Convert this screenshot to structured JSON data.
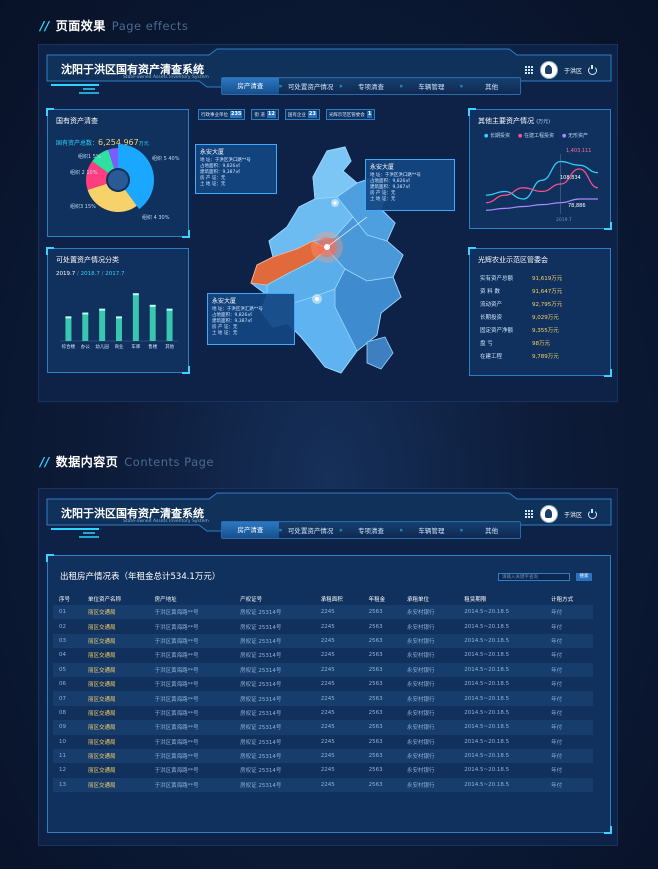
{
  "section1": {
    "slashes": "//",
    "title": "页面效果",
    "title_en": "Page effects"
  },
  "section2": {
    "slashes": "//",
    "title": "数据内容页",
    "title_en": "Contents Page"
  },
  "header": {
    "title": "沈阳于洪区国有资产清查系统",
    "subtitle": "State-owned Assets Inventory System",
    "user": "于洪区",
    "nav": [
      "房产清查",
      "可处置资产情况",
      "专项清查",
      "车辆管理",
      "其他"
    ],
    "active_index": 0
  },
  "assets_panel": {
    "title": "国有资产清查",
    "total_label": "国有资产总数：",
    "total_value": "6,254,967",
    "total_unit": "万元",
    "legend": [
      "组织1  5%",
      "组织 2  10%",
      "组织3  15%",
      "组织 4  30%",
      "组织 5  40%"
    ]
  },
  "disposable_panel": {
    "title": "可处置资产情况分类",
    "date1": "2019.7",
    "date2": "2018.7",
    "date3": "2017.7",
    "sep": "/"
  },
  "filters": [
    {
      "label": "行政事业单位",
      "value": "235"
    },
    {
      "label": "街  道",
      "value": "12"
    },
    {
      "label": "国有企业",
      "value": "23"
    },
    {
      "label": "光辉示范区管委会",
      "value": "1"
    }
  ],
  "popups": [
    {
      "title": "永安大厦",
      "lines": [
        "地      址：于洪区洪口路**号",
        "占地面积：9,826㎡",
        "建筑面积：9,387㎡",
        "房 产 证：无",
        "土 地 证：无"
      ]
    },
    {
      "title": "永安大厦",
      "lines": [
        "地      址：于洪区洪口路**号",
        "占地面积：9,826㎡",
        "建筑面积：9,387㎡",
        "房 产 证：无",
        "土 地 证：无"
      ]
    },
    {
      "title": "永安大厦",
      "lines": [
        "地      址：于洪区洪汇路**号",
        "占地面积：9,826㎡",
        "建筑面积：9,387㎡",
        "房 产 证：无",
        "土 地 证：无"
      ]
    }
  ],
  "other_panel": {
    "title": "其他主要资产情况",
    "unit": "(万元)",
    "legend": [
      "长期投资",
      "在建工程投资",
      "无形资产"
    ],
    "colors": [
      "#2fd3ff",
      "#ff4f8b",
      "#a98bff"
    ],
    "labels": {
      "v1": "1,403,111",
      "v2": "108,834",
      "v3": "78,886",
      "year": "2019.7"
    }
  },
  "guanghui_panel": {
    "title": "光辉农业示范区管委会",
    "rows": [
      {
        "k": "实有资产总额",
        "v": "91,619万元"
      },
      {
        "k": "资  料  数",
        "v": "91,647万元"
      },
      {
        "k": "流动资产",
        "v": "92,795万元"
      },
      {
        "k": "长期投资",
        "v": "9,029万元"
      },
      {
        "k": "固定资产净额",
        "v": "9,355万元"
      },
      {
        "k": "盘      亏",
        "v": "98万元"
      },
      {
        "k": "在建工程",
        "v": "9,789万元"
      }
    ]
  },
  "rental": {
    "title": "出租房产情况表（年租金总计534.1万元）",
    "search_placeholder": "请输入关键字查询",
    "search_button": "搜索",
    "columns": [
      "序号",
      "单位资产名称",
      "房产地址",
      "产权证号",
      "承租面积",
      "年租金",
      "承租单位",
      "租赁期限",
      "计租方式"
    ],
    "rows": [
      [
        "01",
        "丽区交通局",
        "于洪区黄海路**号",
        "房权证 25314号",
        "2245",
        "2563",
        "永安村银行",
        "2014.5~20.18.5",
        "年付"
      ],
      [
        "02",
        "丽区交通局",
        "于洪区黄海路**号",
        "房权证 25314号",
        "2245",
        "2563",
        "永安村银行",
        "2014.5~20.18.5",
        "年付"
      ],
      [
        "03",
        "丽区交通局",
        "于洪区黄海路**号",
        "房权证 25314号",
        "2245",
        "2563",
        "永安村银行",
        "2014.5~20.18.5",
        "年付"
      ],
      [
        "04",
        "丽区交通局",
        "于洪区黄海路**号",
        "房权证 25314号",
        "2245",
        "2563",
        "永安村银行",
        "2014.5~20.18.5",
        "年付"
      ],
      [
        "05",
        "丽区交通局",
        "于洪区黄海路**号",
        "房权证 25314号",
        "2245",
        "2563",
        "永安村银行",
        "2014.5~20.18.5",
        "年付"
      ],
      [
        "06",
        "丽区交通局",
        "于洪区黄海路**号",
        "房权证 25314号",
        "2245",
        "2563",
        "永安村银行",
        "2014.5~20.18.5",
        "年付"
      ],
      [
        "07",
        "丽区交通局",
        "于洪区黄海路**号",
        "房权证 25314号",
        "2245",
        "2563",
        "永安村银行",
        "2014.5~20.18.5",
        "年付"
      ],
      [
        "08",
        "丽区交通局",
        "于洪区黄海路**号",
        "房权证 25314号",
        "2245",
        "2563",
        "永安村银行",
        "2014.5~20.18.5",
        "年付"
      ],
      [
        "09",
        "丽区交通局",
        "于洪区黄海路**号",
        "房权证 25314号",
        "2245",
        "2563",
        "永安村银行",
        "2014.5~20.18.5",
        "年付"
      ],
      [
        "10",
        "丽区交通局",
        "于洪区黄海路**号",
        "房权证 25314号",
        "2245",
        "2563",
        "永安村银行",
        "2014.5~20.18.5",
        "年付"
      ],
      [
        "11",
        "丽区交通局",
        "于洪区黄海路**号",
        "房权证 25314号",
        "2245",
        "2563",
        "永安村银行",
        "2014.5~20.18.5",
        "年付"
      ],
      [
        "12",
        "丽区交通局",
        "于洪区黄海路**号",
        "房权证 25314号",
        "2245",
        "2563",
        "永安村银行",
        "2014.5~20.18.5",
        "年付"
      ],
      [
        "13",
        "丽区交通局",
        "于洪区黄海路**号",
        "房权证 25314号",
        "2245",
        "2563",
        "永安村银行",
        "2014.5~20.18.5",
        "年付"
      ]
    ]
  },
  "chart_data": [
    {
      "type": "pie",
      "title": "国有资产清查",
      "categories": [
        "组织1",
        "组织 2",
        "组织3",
        "组织 4",
        "组织 5"
      ],
      "values": [
        5,
        10,
        15,
        30,
        40
      ],
      "colors": [
        "#7a5cff",
        "#2fe0a0",
        "#ff3d7f",
        "#f7d26b",
        "#1aa7ff"
      ]
    },
    {
      "type": "bar",
      "title": "可处置资产情况分类",
      "categories": [
        "综合楼",
        "办公",
        "幼儿园",
        "商业",
        "车库",
        "售楼",
        "其他"
      ],
      "values": [
        6,
        7,
        8,
        6,
        12,
        9,
        8
      ],
      "ylim": [
        0,
        14
      ]
    },
    {
      "type": "line",
      "title": "其他主要资产情况",
      "series": [
        {
          "name": "长期投资",
          "values": [
            5,
            6,
            4,
            9,
            14,
            13,
            11
          ]
        },
        {
          "name": "在建工程投资",
          "values": [
            3,
            5,
            7,
            6,
            8,
            12,
            7
          ]
        },
        {
          "name": "无形资产",
          "values": [
            1,
            1.5,
            2,
            2.5,
            3,
            4,
            4
          ]
        }
      ],
      "ylim": [
        0,
        16
      ]
    }
  ]
}
